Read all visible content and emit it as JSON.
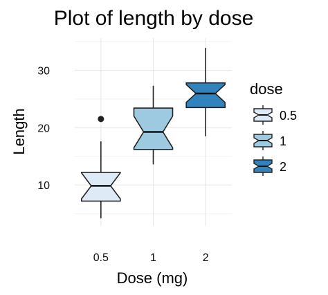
{
  "chart_data": {
    "type": "boxplot",
    "notched": true,
    "title": "Plot of length  by dose",
    "xlabel": "Dose (mg)",
    "ylabel": "Length",
    "categories": [
      "0.5",
      "1",
      "2"
    ],
    "yticks": [
      10,
      20,
      30
    ],
    "ylim": [
      2.9,
      35.6
    ],
    "grid": true,
    "legend": {
      "title": "dose",
      "position": "right",
      "entries": [
        "0.5",
        "1",
        "2"
      ]
    },
    "colors": [
      "#DEEBF7",
      "#9ECAE1",
      "#3182BD"
    ],
    "boxes": [
      {
        "category": "0.5",
        "whisker_low": 4.2,
        "q1": 7.2,
        "median": 9.85,
        "q3": 12.2,
        "whisker_high": 17.6,
        "notch_low": 7.6,
        "notch_high": 12.1,
        "outliers": [
          21.5
        ]
      },
      {
        "category": "1",
        "whisker_low": 13.6,
        "q1": 16.2,
        "median": 19.25,
        "q3": 23.4,
        "whisker_high": 27.3,
        "notch_low": 16.5,
        "notch_high": 22.0,
        "outliers": []
      },
      {
        "category": "2",
        "whisker_low": 18.5,
        "q1": 23.5,
        "median": 25.95,
        "q3": 27.8,
        "whisker_high": 33.9,
        "notch_low": 24.4,
        "notch_high": 27.5,
        "outliers": []
      }
    ]
  }
}
